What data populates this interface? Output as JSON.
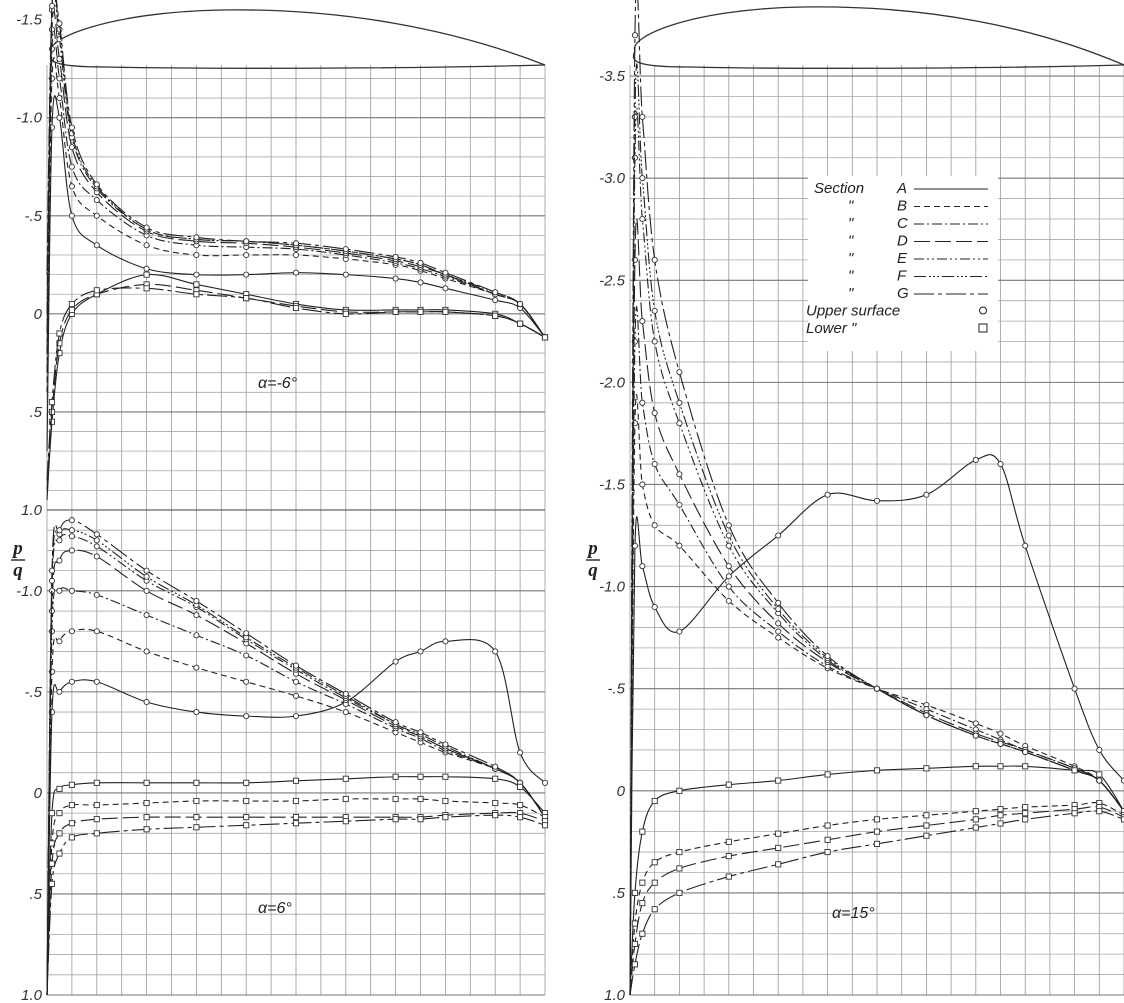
{
  "chart_data": [
    {
      "type": "line",
      "panel": "left-top",
      "annotation": "α=-6°",
      "ylabel_num": "p",
      "ylabel_den": "q",
      "ylim": [
        -1.6,
        1.0
      ],
      "yticks": [
        {
          "v": -1.5,
          "label": "-1.5"
        },
        {
          "v": -1.0,
          "label": "-1.0"
        },
        {
          "v": -0.5,
          "label": "-.5"
        },
        {
          "v": 0,
          "label": "0"
        },
        {
          "v": 0.5,
          "label": ".5"
        },
        {
          "v": 1.0,
          "label": "1.0"
        }
      ],
      "x": [
        0,
        0.01,
        0.025,
        0.05,
        0.1,
        0.2,
        0.3,
        0.4,
        0.5,
        0.6,
        0.7,
        0.75,
        0.8,
        0.9,
        0.95,
        1.0
      ],
      "series": [
        {
          "name": "A",
          "style": "solid",
          "surface": "upper",
          "values": [
            0.7,
            -0.95,
            -1.0,
            -0.5,
            -0.35,
            -0.23,
            -0.2,
            -0.2,
            -0.21,
            -0.2,
            -0.18,
            -0.16,
            -0.13,
            -0.07,
            -0.03,
            0.12
          ]
        },
        {
          "name": "B",
          "style": "dash",
          "surface": "upper",
          "values": [
            0.4,
            -1.2,
            -1.1,
            -0.65,
            -0.5,
            -0.35,
            -0.3,
            -0.3,
            -0.3,
            -0.28,
            -0.25,
            -0.22,
            -0.18,
            -0.1,
            -0.05,
            0.12
          ]
        },
        {
          "name": "C",
          "style": "dashdot",
          "surface": "upper",
          "values": [
            0.3,
            -1.35,
            -1.2,
            -0.75,
            -0.58,
            -0.4,
            -0.35,
            -0.34,
            -0.33,
            -0.3,
            -0.26,
            -0.23,
            -0.19,
            -0.1,
            -0.05,
            0.12
          ]
        },
        {
          "name": "D",
          "style": "longdash",
          "surface": "upper",
          "values": [
            0.2,
            -1.45,
            -1.3,
            -0.85,
            -0.62,
            -0.42,
            -0.37,
            -0.36,
            -0.34,
            -0.31,
            -0.27,
            -0.24,
            -0.2,
            -0.1,
            -0.05,
            0.12
          ]
        },
        {
          "name": "E",
          "style": "dashdotdot",
          "surface": "upper",
          "values": [
            0.1,
            -1.55,
            -1.4,
            -0.9,
            -0.64,
            -0.43,
            -0.38,
            -0.37,
            -0.35,
            -0.32,
            -0.28,
            -0.25,
            -0.2,
            -0.1,
            -0.05,
            0.12
          ]
        },
        {
          "name": "F",
          "style": "dashdotdotdot",
          "surface": "upper",
          "values": [
            0.0,
            -1.55,
            -1.45,
            -0.92,
            -0.65,
            -0.43,
            -0.38,
            -0.37,
            -0.35,
            -0.32,
            -0.28,
            -0.25,
            -0.2,
            -0.11,
            -0.05,
            0.12
          ]
        },
        {
          "name": "G",
          "style": "dashlong",
          "surface": "upper",
          "values": [
            -0.2,
            -1.57,
            -1.48,
            -0.95,
            -0.66,
            -0.44,
            -0.39,
            -0.37,
            -0.36,
            -0.33,
            -0.29,
            -0.26,
            -0.21,
            -0.11,
            -0.05,
            0.12
          ]
        },
        {
          "name": "A",
          "style": "solid",
          "surface": "lower",
          "values": [
            0.95,
            0.55,
            0.2,
            0.0,
            -0.1,
            -0.2,
            -0.15,
            -0.1,
            -0.05,
            -0.02,
            -0.02,
            -0.02,
            -0.02,
            0.0,
            0.05,
            0.12
          ]
        },
        {
          "name": "D",
          "style": "longdash",
          "surface": "lower",
          "values": [
            0.9,
            0.5,
            0.15,
            -0.02,
            -0.1,
            -0.15,
            -0.12,
            -0.08,
            -0.04,
            -0.01,
            -0.01,
            -0.01,
            -0.01,
            0.01,
            0.05,
            0.12
          ]
        },
        {
          "name": "G",
          "style": "dashlong",
          "surface": "lower",
          "values": [
            0.85,
            0.45,
            0.1,
            -0.05,
            -0.12,
            -0.13,
            -0.1,
            -0.08,
            -0.03,
            0.0,
            -0.01,
            -0.01,
            -0.01,
            0.01,
            0.05,
            0.12
          ]
        }
      ]
    },
    {
      "type": "line",
      "panel": "left-bottom",
      "annotation": "α=6°",
      "ylabel_num": "p",
      "ylabel_den": "q",
      "ylim": [
        -1.4,
        1.0
      ],
      "yticks": [
        {
          "v": -1.0,
          "label": "-1.0"
        },
        {
          "v": -0.5,
          "label": "-.5"
        },
        {
          "v": 0,
          "label": "0"
        },
        {
          "v": 0.5,
          "label": ".5"
        },
        {
          "v": 1.0,
          "label": "1.0"
        }
      ],
      "x": [
        0,
        0.01,
        0.025,
        0.05,
        0.1,
        0.2,
        0.3,
        0.4,
        0.5,
        0.6,
        0.7,
        0.75,
        0.8,
        0.9,
        0.95,
        1.0
      ],
      "series": [
        {
          "name": "A",
          "style": "solid",
          "surface": "upper",
          "values": [
            1.0,
            -0.4,
            -0.5,
            -0.55,
            -0.55,
            -0.45,
            -0.4,
            -0.38,
            -0.38,
            -0.45,
            -0.65,
            -0.7,
            -0.75,
            -0.7,
            -0.2,
            -0.05
          ]
        },
        {
          "name": "B",
          "style": "dash",
          "surface": "upper",
          "values": [
            1.0,
            -0.6,
            -0.75,
            -0.8,
            -0.8,
            -0.7,
            -0.62,
            -0.55,
            -0.48,
            -0.4,
            -0.3,
            -0.25,
            -0.2,
            -0.12,
            -0.05,
            0.12
          ]
        },
        {
          "name": "C",
          "style": "dashdot",
          "surface": "upper",
          "values": [
            1.0,
            -0.8,
            -1.0,
            -1.0,
            -0.98,
            -0.88,
            -0.78,
            -0.68,
            -0.55,
            -0.44,
            -0.32,
            -0.27,
            -0.21,
            -0.12,
            -0.05,
            0.12
          ]
        },
        {
          "name": "D",
          "style": "longdash",
          "surface": "upper",
          "values": [
            1.0,
            -0.9,
            -1.15,
            -1.2,
            -1.17,
            -1.0,
            -0.88,
            -0.74,
            -0.59,
            -0.46,
            -0.33,
            -0.28,
            -0.22,
            -0.12,
            -0.05,
            0.12
          ]
        },
        {
          "name": "E",
          "style": "dashdotdot",
          "surface": "upper",
          "values": [
            1.0,
            -1.0,
            -1.25,
            -1.27,
            -1.22,
            -1.05,
            -0.92,
            -0.76,
            -0.61,
            -0.47,
            -0.34,
            -0.28,
            -0.22,
            -0.12,
            -0.05,
            0.12
          ]
        },
        {
          "name": "F",
          "style": "dashdotdotdot",
          "surface": "upper",
          "values": [
            1.0,
            -1.05,
            -1.28,
            -1.3,
            -1.25,
            -1.07,
            -0.93,
            -0.77,
            -0.62,
            -0.48,
            -0.34,
            -0.29,
            -0.23,
            -0.12,
            -0.05,
            0.12
          ]
        },
        {
          "name": "G",
          "style": "dashlong",
          "surface": "upper",
          "values": [
            1.0,
            -1.1,
            -1.3,
            -1.35,
            -1.28,
            -1.1,
            -0.95,
            -0.79,
            -0.63,
            -0.49,
            -0.35,
            -0.3,
            -0.24,
            -0.13,
            -0.05,
            0.12
          ]
        },
        {
          "name": "A",
          "style": "solid",
          "surface": "lower",
          "values": [
            1.0,
            0.1,
            -0.02,
            -0.04,
            -0.05,
            -0.05,
            -0.05,
            -0.05,
            -0.06,
            -0.07,
            -0.08,
            -0.08,
            -0.08,
            -0.07,
            -0.03,
            0.1
          ]
        },
        {
          "name": "B",
          "style": "dash",
          "surface": "lower",
          "values": [
            1.0,
            0.25,
            0.1,
            0.06,
            0.06,
            0.05,
            0.04,
            0.04,
            0.04,
            0.03,
            0.03,
            0.03,
            0.04,
            0.05,
            0.06,
            0.12
          ]
        },
        {
          "name": "D",
          "style": "longdash",
          "surface": "lower",
          "values": [
            1.0,
            0.35,
            0.2,
            0.15,
            0.13,
            0.12,
            0.12,
            0.12,
            0.12,
            0.12,
            0.12,
            0.12,
            0.11,
            0.1,
            0.1,
            0.14
          ]
        },
        {
          "name": "G",
          "style": "dashlong",
          "surface": "lower",
          "values": [
            1.0,
            0.45,
            0.3,
            0.22,
            0.2,
            0.18,
            0.17,
            0.16,
            0.15,
            0.14,
            0.13,
            0.13,
            0.12,
            0.11,
            0.12,
            0.16
          ]
        }
      ]
    },
    {
      "type": "line",
      "panel": "right",
      "annotation": "α=15°",
      "ylabel_num": "p",
      "ylabel_den": "q",
      "ylim": [
        -3.75,
        1.0
      ],
      "yticks": [
        {
          "v": -3.5,
          "label": "-3.5"
        },
        {
          "v": -3.0,
          "label": "-3.0"
        },
        {
          "v": -2.5,
          "label": "-2.5"
        },
        {
          "v": -2.0,
          "label": "-2.0"
        },
        {
          "v": -1.5,
          "label": "-1.5"
        },
        {
          "v": -1.0,
          "label": "-1.0"
        },
        {
          "v": -0.5,
          "label": "-.5"
        },
        {
          "v": 0,
          "label": "0"
        },
        {
          "v": 0.5,
          "label": ".5"
        },
        {
          "v": 1.0,
          "label": "1.0"
        }
      ],
      "x": [
        0,
        0.01,
        0.025,
        0.05,
        0.1,
        0.2,
        0.3,
        0.4,
        0.5,
        0.6,
        0.7,
        0.75,
        0.8,
        0.9,
        0.95,
        1.0
      ],
      "series": [
        {
          "name": "A",
          "style": "solid",
          "surface": "upper",
          "values": [
            1.0,
            -1.2,
            -1.1,
            -0.9,
            -0.78,
            -1.05,
            -1.25,
            -1.45,
            -1.42,
            -1.45,
            -1.62,
            -1.6,
            -1.2,
            -0.5,
            -0.2,
            -0.05
          ]
        },
        {
          "name": "B",
          "style": "dash",
          "surface": "upper",
          "values": [
            1.0,
            -1.8,
            -1.5,
            -1.3,
            -1.2,
            -0.93,
            -0.75,
            -0.6,
            -0.5,
            -0.42,
            -0.33,
            -0.28,
            -0.22,
            -0.12,
            -0.05,
            0.1
          ]
        },
        {
          "name": "C",
          "style": "dashdot",
          "surface": "upper",
          "values": [
            1.0,
            -2.2,
            -1.9,
            -1.6,
            -1.4,
            -1.0,
            -0.78,
            -0.61,
            -0.5,
            -0.4,
            -0.3,
            -0.25,
            -0.2,
            -0.11,
            -0.05,
            0.1
          ]
        },
        {
          "name": "D",
          "style": "longdash",
          "surface": "upper",
          "values": [
            1.0,
            -2.6,
            -2.3,
            -1.85,
            -1.55,
            -1.1,
            -0.82,
            -0.63,
            -0.5,
            -0.38,
            -0.28,
            -0.24,
            -0.2,
            -0.11,
            -0.05,
            0.1
          ]
        },
        {
          "name": "E",
          "style": "dashdotdot",
          "surface": "upper",
          "values": [
            1.0,
            -3.1,
            -2.8,
            -2.2,
            -1.8,
            -1.2,
            -0.87,
            -0.64,
            -0.5,
            -0.37,
            -0.27,
            -0.23,
            -0.19,
            -0.1,
            -0.05,
            0.1
          ]
        },
        {
          "name": "F",
          "style": "dashdotdotdot",
          "surface": "upper",
          "values": [
            1.0,
            -3.3,
            -3.0,
            -2.35,
            -1.9,
            -1.25,
            -0.89,
            -0.65,
            -0.5,
            -0.37,
            -0.27,
            -0.23,
            -0.19,
            -0.1,
            -0.05,
            0.1
          ]
        },
        {
          "name": "G",
          "style": "dashlong",
          "surface": "upper",
          "values": [
            1.0,
            -3.7,
            -3.3,
            -2.6,
            -2.05,
            -1.3,
            -0.92,
            -0.66,
            -0.5,
            -0.37,
            -0.27,
            -0.23,
            -0.19,
            -0.1,
            -0.05,
            0.1
          ]
        },
        {
          "name": "A",
          "style": "solid",
          "surface": "lower",
          "values": [
            1.0,
            0.5,
            0.2,
            0.05,
            0.0,
            -0.03,
            -0.05,
            -0.08,
            -0.1,
            -0.11,
            -0.12,
            -0.12,
            -0.12,
            -0.1,
            -0.08,
            0.1
          ]
        },
        {
          "name": "B",
          "style": "dash",
          "surface": "lower",
          "values": [
            1.0,
            0.65,
            0.45,
            0.35,
            0.3,
            0.25,
            0.21,
            0.17,
            0.14,
            0.12,
            0.1,
            0.09,
            0.08,
            0.07,
            0.06,
            0.12
          ]
        },
        {
          "name": "D",
          "style": "longdash",
          "surface": "lower",
          "values": [
            1.0,
            0.75,
            0.55,
            0.45,
            0.38,
            0.32,
            0.28,
            0.24,
            0.2,
            0.17,
            0.14,
            0.12,
            0.11,
            0.09,
            0.08,
            0.13
          ]
        },
        {
          "name": "G",
          "style": "dashlong",
          "surface": "lower",
          "values": [
            1.0,
            0.85,
            0.7,
            0.58,
            0.5,
            0.42,
            0.36,
            0.3,
            0.26,
            0.22,
            0.18,
            0.16,
            0.14,
            0.11,
            0.1,
            0.14
          ]
        }
      ]
    }
  ],
  "legend": {
    "entries": [
      {
        "prefix": "Section",
        "label": "A",
        "style": "solid"
      },
      {
        "prefix": "\"",
        "label": "B",
        "style": "dash"
      },
      {
        "prefix": "\"",
        "label": "C",
        "style": "dashdot"
      },
      {
        "prefix": "\"",
        "label": "D",
        "style": "longdash"
      },
      {
        "prefix": "\"",
        "label": "E",
        "style": "dashdotdot"
      },
      {
        "prefix": "\"",
        "label": "F",
        "style": "dashdotdotdot"
      },
      {
        "prefix": "\"",
        "label": "G",
        "style": "dashlong"
      }
    ],
    "markers": [
      {
        "label": "Upper surface",
        "symbol": "circle"
      },
      {
        "label": "Lower        \"",
        "symbol": "square"
      }
    ]
  }
}
